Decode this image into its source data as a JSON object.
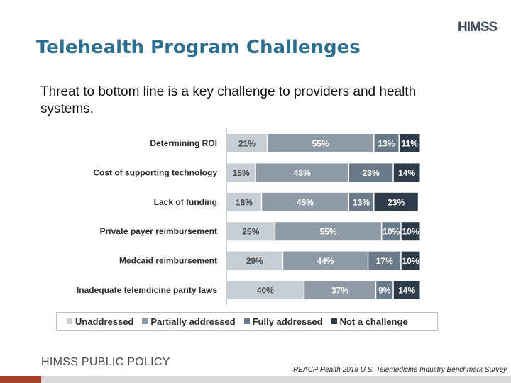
{
  "brand": {
    "logo_text": "HIMSS",
    "footer": "HIMSS PUBLIC POLICY"
  },
  "title": "Telehealth Program Challenges",
  "subtitle": "Threat to bottom line is a key challenge to providers and health systems.",
  "source": "REACH Health 2018 U.S. Telemedicine Industry Benchmark Survey",
  "colors": {
    "title": "#2d6f91",
    "unaddressed": "#c6ced6",
    "partially": "#8e9aa5",
    "fully": "#6b7a88",
    "not_challenge": "#2e3b48"
  },
  "chart_data": {
    "type": "bar",
    "orientation": "horizontal",
    "stacked": true,
    "unit": "%",
    "categories": [
      "Determining ROI",
      "Cost of supporting technology",
      "Lack of funding",
      "Private payer reimbursement",
      "Medcaid reimbursement",
      "Inadequate telemdicine parity laws"
    ],
    "series": [
      {
        "name": "Unaddressed",
        "values": [
          21,
          15,
          18,
          25,
          29,
          40
        ]
      },
      {
        "name": "Partially addressed",
        "values": [
          55,
          48,
          45,
          55,
          44,
          37
        ]
      },
      {
        "name": "Fully addressed",
        "values": [
          13,
          23,
          13,
          10,
          17,
          9
        ]
      },
      {
        "name": "Not a challenge",
        "values": [
          11,
          14,
          23,
          10,
          10,
          14
        ]
      }
    ],
    "data_labels": [
      [
        "21%",
        "55%",
        "13%",
        "11%"
      ],
      [
        "15%",
        "48%",
        "23%",
        "14%"
      ],
      [
        "18%",
        "45%",
        "13%",
        "23%"
      ],
      [
        "25%",
        "55%",
        "10%",
        "10%"
      ],
      [
        "29%",
        "44%",
        "17%",
        "10%"
      ],
      [
        "40%",
        "37%",
        "9%",
        "14%"
      ]
    ],
    "legend_position": "bottom",
    "grid": false
  }
}
